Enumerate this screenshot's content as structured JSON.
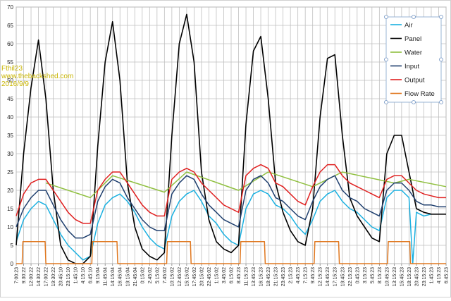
{
  "watermark": {
    "user": "Fthil23",
    "site": "www.thebackshed.com",
    "date": "2016/9/9"
  },
  "chart_data": {
    "type": "line",
    "title": "",
    "xlabel": "",
    "ylabel": "",
    "ylim": [
      0,
      70
    ],
    "yticks": [
      0,
      5,
      10,
      15,
      20,
      25,
      30,
      35,
      40,
      45,
      50,
      55,
      60,
      65,
      70
    ],
    "grid": true,
    "legend_position": "top-right",
    "x_tick_labels": [
      "7:00:23",
      "9:30:22",
      "12:00:22",
      "14:30:22",
      "17:00:22",
      "19:30:22",
      "20:45:10",
      "23:15:10",
      "1:45:10",
      "4:15:10",
      "6:45:10",
      "9:15:04",
      "11:45:04",
      "14:15:04",
      "16:45:04",
      "19:15:04",
      "21:45:04",
      "0:15:02",
      "2:45:02",
      "5:15:02",
      "7:45:02",
      "10:15:02",
      "12:45:02",
      "15:15:02",
      "17:45:02",
      "20:15:02",
      "22:45:02",
      "1:15:02",
      "3:45:02",
      "6:15:02",
      "8:45:23",
      "11:15:23",
      "13:45:23",
      "16:15:23",
      "18:45:23",
      "21:15:23",
      "23:45:23",
      "2:15:23",
      "4:45:23",
      "7:15:23",
      "9:45:23",
      "12:15:23",
      "14:45:23",
      "17:15:23",
      "19:45:23",
      "22:15:23",
      "0:45:23",
      "3:15:23",
      "5:45:23",
      "8:15:23",
      "10:45:23",
      "13:15:23",
      "15:45:23",
      "18:15:23",
      "20:45:23",
      "23:15:23",
      "1:45:23",
      "4:15:23",
      "6:45:23"
    ],
    "series": [
      {
        "name": "Air",
        "color": "#1ab0e0",
        "points": [
          [
            0,
            6
          ],
          [
            1,
            12
          ],
          [
            2,
            15
          ],
          [
            3,
            17
          ],
          [
            4,
            16
          ],
          [
            5,
            12
          ],
          [
            6,
            8
          ],
          [
            7,
            5
          ],
          [
            8,
            3
          ],
          [
            9,
            1
          ],
          [
            10,
            2
          ],
          [
            11,
            11
          ],
          [
            12,
            16
          ],
          [
            13,
            18
          ],
          [
            14,
            19
          ],
          [
            15,
            17
          ],
          [
            16,
            14
          ],
          [
            17,
            10
          ],
          [
            18,
            7
          ],
          [
            19,
            5
          ],
          [
            20,
            4
          ],
          [
            21,
            13
          ],
          [
            22,
            17
          ],
          [
            23,
            19
          ],
          [
            24,
            20
          ],
          [
            25,
            17
          ],
          [
            26,
            13
          ],
          [
            27,
            11
          ],
          [
            28,
            8
          ],
          [
            29,
            6
          ],
          [
            30,
            5
          ],
          [
            31,
            15
          ],
          [
            32,
            19
          ],
          [
            33,
            20
          ],
          [
            34,
            19
          ],
          [
            35,
            16
          ],
          [
            36,
            15
          ],
          [
            37,
            13
          ],
          [
            38,
            10
          ],
          [
            39,
            8
          ],
          [
            40,
            12
          ],
          [
            41,
            17
          ],
          [
            42,
            19
          ],
          [
            43,
            20
          ],
          [
            44,
            17
          ],
          [
            45,
            15
          ],
          [
            46,
            14
          ],
          [
            47,
            12
          ],
          [
            48,
            10
          ],
          [
            49,
            9
          ],
          [
            50,
            18
          ],
          [
            51,
            20
          ],
          [
            52,
            20
          ],
          [
            53,
            18
          ],
          [
            53.5,
            0
          ],
          [
            54,
            14
          ],
          [
            55,
            13
          ],
          [
            56,
            13.5
          ],
          [
            57,
            13.5
          ],
          [
            58,
            13.5
          ]
        ]
      },
      {
        "name": "Panel",
        "color": "#000000",
        "points": [
          [
            0,
            5
          ],
          [
            1,
            30
          ],
          [
            2,
            48
          ],
          [
            3,
            61
          ],
          [
            4,
            45
          ],
          [
            5,
            20
          ],
          [
            6,
            5
          ],
          [
            7,
            1
          ],
          [
            8,
            0
          ],
          [
            9,
            0
          ],
          [
            10,
            2
          ],
          [
            11,
            32
          ],
          [
            12,
            55
          ],
          [
            13,
            66
          ],
          [
            14,
            50
          ],
          [
            15,
            22
          ],
          [
            16,
            10
          ],
          [
            17,
            4
          ],
          [
            18,
            2
          ],
          [
            19,
            1
          ],
          [
            20,
            3
          ],
          [
            21,
            35
          ],
          [
            22,
            60
          ],
          [
            23,
            68
          ],
          [
            24,
            55
          ],
          [
            25,
            25
          ],
          [
            26,
            12
          ],
          [
            27,
            6
          ],
          [
            28,
            4
          ],
          [
            29,
            3
          ],
          [
            30,
            5
          ],
          [
            31,
            38
          ],
          [
            32,
            58
          ],
          [
            33,
            62
          ],
          [
            34,
            45
          ],
          [
            35,
            22
          ],
          [
            36,
            14
          ],
          [
            37,
            9
          ],
          [
            38,
            6
          ],
          [
            39,
            5
          ],
          [
            40,
            15
          ],
          [
            41,
            40
          ],
          [
            42,
            56
          ],
          [
            43,
            57
          ],
          [
            44,
            35
          ],
          [
            45,
            18
          ],
          [
            46,
            13
          ],
          [
            47,
            10
          ],
          [
            48,
            7
          ],
          [
            49,
            6
          ],
          [
            50,
            30
          ],
          [
            51,
            35
          ],
          [
            52,
            35
          ],
          [
            53,
            25
          ],
          [
            54,
            15
          ],
          [
            55,
            14
          ],
          [
            56,
            13.5
          ],
          [
            57,
            13.5
          ],
          [
            58,
            13.5
          ]
        ]
      },
      {
        "name": "Water",
        "color": "#90c040",
        "points": [
          [
            4,
            22
          ],
          [
            10,
            18
          ],
          [
            13,
            24
          ],
          [
            20,
            19.5
          ],
          [
            23,
            25
          ],
          [
            30,
            20
          ],
          [
            34,
            25
          ],
          [
            40,
            21
          ],
          [
            44,
            25
          ],
          [
            51,
            22
          ],
          [
            53,
            23
          ],
          [
            58,
            21
          ]
        ]
      },
      {
        "name": "Input",
        "color": "#1f3f6e",
        "points": [
          [
            0,
            10
          ],
          [
            1,
            15
          ],
          [
            2,
            18
          ],
          [
            3,
            20
          ],
          [
            4,
            20
          ],
          [
            5,
            16
          ],
          [
            6,
            12
          ],
          [
            7,
            9
          ],
          [
            8,
            7
          ],
          [
            9,
            7
          ],
          [
            10,
            8
          ],
          [
            11,
            17
          ],
          [
            12,
            21
          ],
          [
            13,
            23
          ],
          [
            14,
            22
          ],
          [
            15,
            18
          ],
          [
            16,
            15
          ],
          [
            17,
            12
          ],
          [
            18,
            10
          ],
          [
            19,
            9
          ],
          [
            20,
            9
          ],
          [
            21,
            19
          ],
          [
            22,
            22
          ],
          [
            23,
            24
          ],
          [
            24,
            23
          ],
          [
            25,
            19
          ],
          [
            26,
            16
          ],
          [
            27,
            14
          ],
          [
            28,
            12
          ],
          [
            29,
            11
          ],
          [
            30,
            10
          ],
          [
            31,
            20
          ],
          [
            32,
            23
          ],
          [
            33,
            24
          ],
          [
            34,
            22
          ],
          [
            35,
            18
          ],
          [
            36,
            17
          ],
          [
            37,
            15
          ],
          [
            38,
            13
          ],
          [
            39,
            12
          ],
          [
            40,
            17
          ],
          [
            41,
            21
          ],
          [
            42,
            23
          ],
          [
            43,
            24
          ],
          [
            44,
            20
          ],
          [
            45,
            18
          ],
          [
            46,
            17
          ],
          [
            47,
            15
          ],
          [
            48,
            14
          ],
          [
            49,
            13
          ],
          [
            50,
            20
          ],
          [
            51,
            22
          ],
          [
            52,
            22
          ],
          [
            53,
            20
          ],
          [
            54,
            17
          ],
          [
            55,
            16
          ],
          [
            56,
            16
          ],
          [
            57,
            15.5
          ],
          [
            58,
            15.5
          ]
        ]
      },
      {
        "name": "Output",
        "color": "#e02020",
        "points": [
          [
            0,
            13
          ],
          [
            1,
            19
          ],
          [
            2,
            22
          ],
          [
            3,
            23
          ],
          [
            4,
            23
          ],
          [
            5,
            20
          ],
          [
            6,
            17
          ],
          [
            7,
            14
          ],
          [
            8,
            12
          ],
          [
            9,
            11
          ],
          [
            10,
            11
          ],
          [
            11,
            20
          ],
          [
            12,
            23
          ],
          [
            13,
            25
          ],
          [
            14,
            25
          ],
          [
            15,
            22
          ],
          [
            16,
            19
          ],
          [
            17,
            16
          ],
          [
            18,
            14
          ],
          [
            19,
            13
          ],
          [
            20,
            13
          ],
          [
            21,
            23
          ],
          [
            22,
            25
          ],
          [
            23,
            26
          ],
          [
            24,
            25
          ],
          [
            25,
            22
          ],
          [
            26,
            20
          ],
          [
            27,
            18
          ],
          [
            28,
            16
          ],
          [
            29,
            15
          ],
          [
            30,
            14
          ],
          [
            31,
            24
          ],
          [
            32,
            26
          ],
          [
            33,
            27
          ],
          [
            34,
            26
          ],
          [
            35,
            22
          ],
          [
            36,
            21
          ],
          [
            37,
            19
          ],
          [
            38,
            17
          ],
          [
            39,
            16
          ],
          [
            40,
            21
          ],
          [
            41,
            25
          ],
          [
            42,
            27
          ],
          [
            43,
            27
          ],
          [
            44,
            24
          ],
          [
            45,
            22
          ],
          [
            46,
            21
          ],
          [
            47,
            20
          ],
          [
            48,
            19
          ],
          [
            49,
            18
          ],
          [
            50,
            23
          ],
          [
            51,
            24
          ],
          [
            52,
            24
          ],
          [
            53,
            22
          ],
          [
            54,
            20
          ],
          [
            55,
            19
          ],
          [
            56,
            18.5
          ],
          [
            57,
            18
          ],
          [
            58,
            18
          ]
        ]
      },
      {
        "name": "Flow Rate",
        "color": "#e07820",
        "points": [
          [
            0,
            0
          ],
          [
            0.8,
            0
          ],
          [
            0.9,
            6
          ],
          [
            3.9,
            6
          ],
          [
            4,
            0
          ],
          [
            10.2,
            0
          ],
          [
            10.3,
            6
          ],
          [
            13.6,
            6
          ],
          [
            13.7,
            0
          ],
          [
            20.3,
            0
          ],
          [
            20.4,
            6
          ],
          [
            23.5,
            6
          ],
          [
            23.6,
            0
          ],
          [
            30.2,
            0
          ],
          [
            30.3,
            6
          ],
          [
            33.5,
            6
          ],
          [
            33.6,
            0
          ],
          [
            40.2,
            0
          ],
          [
            40.3,
            6
          ],
          [
            43.5,
            6
          ],
          [
            43.6,
            0
          ],
          [
            50.1,
            0
          ],
          [
            50.2,
            6
          ],
          [
            53.1,
            6
          ],
          [
            53.2,
            0
          ],
          [
            58,
            0
          ]
        ]
      }
    ]
  }
}
